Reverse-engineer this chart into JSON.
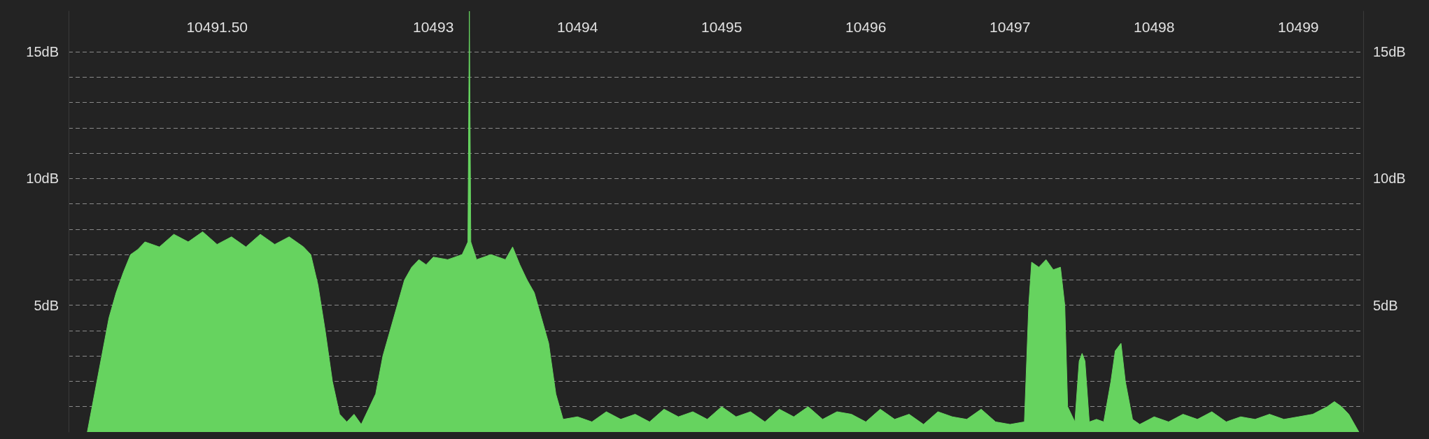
{
  "chart_data": {
    "type": "area",
    "xlim": [
      10490.47,
      10499.45
    ],
    "xticks": [
      {
        "value": 10491.5,
        "label": "10491.50"
      },
      10493,
      10494,
      10495,
      10496,
      10497,
      10498,
      10499
    ],
    "ylim": [
      0,
      16.6
    ],
    "yticks": [
      {
        "value": 1,
        "label": null
      },
      {
        "value": 2,
        "label": null
      },
      {
        "value": 3,
        "label": null
      },
      {
        "value": 4,
        "label": null
      },
      {
        "value": 5,
        "label": "5dB"
      },
      {
        "value": 6,
        "label": null
      },
      {
        "value": 7,
        "label": null
      },
      {
        "value": 8,
        "label": null
      },
      {
        "value": 9,
        "label": null
      },
      {
        "value": 10,
        "label": "10dB"
      },
      {
        "value": 11,
        "label": null
      },
      {
        "value": 12,
        "label": null
      },
      {
        "value": 13,
        "label": null
      },
      {
        "value": 14,
        "label": null
      },
      {
        "value": 15,
        "label": "15dB"
      }
    ],
    "y2lim": [
      0,
      16.6
    ],
    "y2ticks": [
      {
        "value": 5,
        "label": "5dB"
      },
      {
        "value": 10,
        "label": "10dB"
      },
      {
        "value": 15,
        "label": "15dB"
      }
    ],
    "grid": "y",
    "marker": "none",
    "series": [
      {
        "color": "#66d35f",
        "x": [
          10490.6,
          10490.65,
          10490.7,
          10490.75,
          10490.8,
          10490.85,
          10490.9,
          10490.95,
          10491.0,
          10491.1,
          10491.2,
          10491.3,
          10491.4,
          10491.5,
          10491.6,
          10491.7,
          10491.8,
          10491.9,
          10492.0,
          10492.1,
          10492.15,
          10492.2,
          10492.25,
          10492.3,
          10492.35,
          10492.4,
          10492.45,
          10492.5,
          10492.55,
          10492.6,
          10492.65,
          10492.7,
          10492.75,
          10492.8,
          10492.85,
          10492.9,
          10492.95,
          10493.0,
          10493.1,
          10493.2,
          10493.24,
          10493.25,
          10493.26,
          10493.3,
          10493.4,
          10493.5,
          10493.55,
          10493.6,
          10493.65,
          10493.7,
          10493.75,
          10493.8,
          10493.85,
          10493.9,
          10494.0,
          10494.1,
          10494.2,
          10494.3,
          10494.4,
          10494.5,
          10494.6,
          10494.7,
          10494.8,
          10494.9,
          10495.0,
          10495.1,
          10495.2,
          10495.3,
          10495.4,
          10495.5,
          10495.6,
          10495.7,
          10495.8,
          10495.9,
          10496.0,
          10496.1,
          10496.2,
          10496.3,
          10496.4,
          10496.5,
          10496.6,
          10496.7,
          10496.8,
          10496.9,
          10497.0,
          10497.1,
          10497.13,
          10497.15,
          10497.2,
          10497.25,
          10497.3,
          10497.35,
          10497.38,
          10497.4,
          10497.45,
          10497.48,
          10497.5,
          10497.52,
          10497.55,
          10497.6,
          10497.65,
          10497.7,
          10497.73,
          10497.77,
          10497.8,
          10497.85,
          10497.9,
          10498.0,
          10498.1,
          10498.2,
          10498.3,
          10498.4,
          10498.5,
          10498.6,
          10498.7,
          10498.8,
          10498.9,
          10499.0,
          10499.1,
          10499.2,
          10499.25,
          10499.3,
          10499.35,
          10499.42
        ],
        "values": [
          0,
          1.5,
          3,
          4.5,
          5.5,
          6.3,
          7,
          7.2,
          7.5,
          7.3,
          7.8,
          7.5,
          7.9,
          7.4,
          7.7,
          7.3,
          7.8,
          7.4,
          7.7,
          7.3,
          7.0,
          5.8,
          4,
          2,
          0.7,
          0.4,
          0.7,
          0.3,
          0.9,
          1.5,
          3,
          4,
          5,
          6,
          6.5,
          6.8,
          6.6,
          6.9,
          6.8,
          7.0,
          7.5,
          16.6,
          7.5,
          6.8,
          7.0,
          6.8,
          7.3,
          6.6,
          6.0,
          5.5,
          4.5,
          3.5,
          1.5,
          0.5,
          0.6,
          0.4,
          0.8,
          0.5,
          0.7,
          0.4,
          0.9,
          0.6,
          0.8,
          0.5,
          1.0,
          0.6,
          0.8,
          0.4,
          0.9,
          0.6,
          1.0,
          0.5,
          0.8,
          0.7,
          0.4,
          0.9,
          0.5,
          0.7,
          0.3,
          0.8,
          0.6,
          0.5,
          0.9,
          0.4,
          0.3,
          0.4,
          5,
          6.7,
          6.5,
          6.8,
          6.4,
          6.5,
          5,
          1,
          0.4,
          2.8,
          3.1,
          2.8,
          0.4,
          0.5,
          0.4,
          2,
          3.2,
          3.5,
          2,
          0.5,
          0.3,
          0.6,
          0.4,
          0.7,
          0.5,
          0.8,
          0.4,
          0.6,
          0.5,
          0.7,
          0.5,
          0.6,
          0.7,
          1.0,
          1.2,
          1.0,
          0.7,
          0
        ]
      }
    ]
  }
}
